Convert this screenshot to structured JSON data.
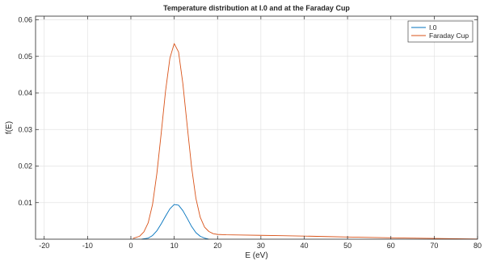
{
  "chart_data": {
    "type": "line",
    "title": "Temperature distribution at I.0 and at the Faraday Cup",
    "xlabel": "E (eV)",
    "ylabel": "f(E)",
    "xlim": [
      -22,
      80
    ],
    "ylim": [
      0,
      0.061
    ],
    "xticks": [
      -20,
      -10,
      0,
      10,
      20,
      30,
      40,
      50,
      60,
      70,
      80
    ],
    "xtick_labels": [
      "-20",
      "-10",
      "0",
      "10",
      "20",
      "30",
      "40",
      "50",
      "60",
      "70",
      "80"
    ],
    "yticks": [
      0.01,
      0.02,
      0.03,
      0.04,
      0.05,
      0.06
    ],
    "ytick_labels": [
      "0.01",
      "0.02",
      "0.03",
      "0.04",
      "0.05",
      "0.06"
    ],
    "grid": true,
    "legend_position": "top-right",
    "series": [
      {
        "name": "I.0",
        "color": "#0072BD",
        "x": [
          2.5,
          4,
          5,
          6,
          7,
          8,
          9,
          10,
          11,
          12,
          13,
          14,
          15,
          16,
          17,
          18
        ],
        "y": [
          0,
          0.0003,
          0.001,
          0.0023,
          0.0042,
          0.0063,
          0.0083,
          0.0095,
          0.0093,
          0.0078,
          0.0057,
          0.0035,
          0.0018,
          0.0008,
          0.0003,
          0
        ]
      },
      {
        "name": "Faraday Cup",
        "color": "#D95319",
        "x": [
          0.5,
          2,
          3,
          4,
          5,
          6,
          7,
          8,
          9,
          10,
          11,
          12,
          13,
          14,
          15,
          16,
          17,
          18,
          19,
          20,
          22,
          25,
          30,
          35,
          40,
          45,
          50,
          55,
          60,
          65,
          70,
          75,
          80
        ],
        "y": [
          0.0002,
          0.0008,
          0.002,
          0.0045,
          0.0095,
          0.018,
          0.029,
          0.0405,
          0.0495,
          0.0535,
          0.0512,
          0.0425,
          0.031,
          0.0198,
          0.0112,
          0.006,
          0.0033,
          0.0021,
          0.0015,
          0.0013,
          0.0012,
          0.00115,
          0.00105,
          0.00095,
          0.00085,
          0.00072,
          0.0006,
          0.00048,
          0.00038,
          0.00028,
          0.0002,
          0.00012,
          5e-05
        ]
      }
    ]
  }
}
